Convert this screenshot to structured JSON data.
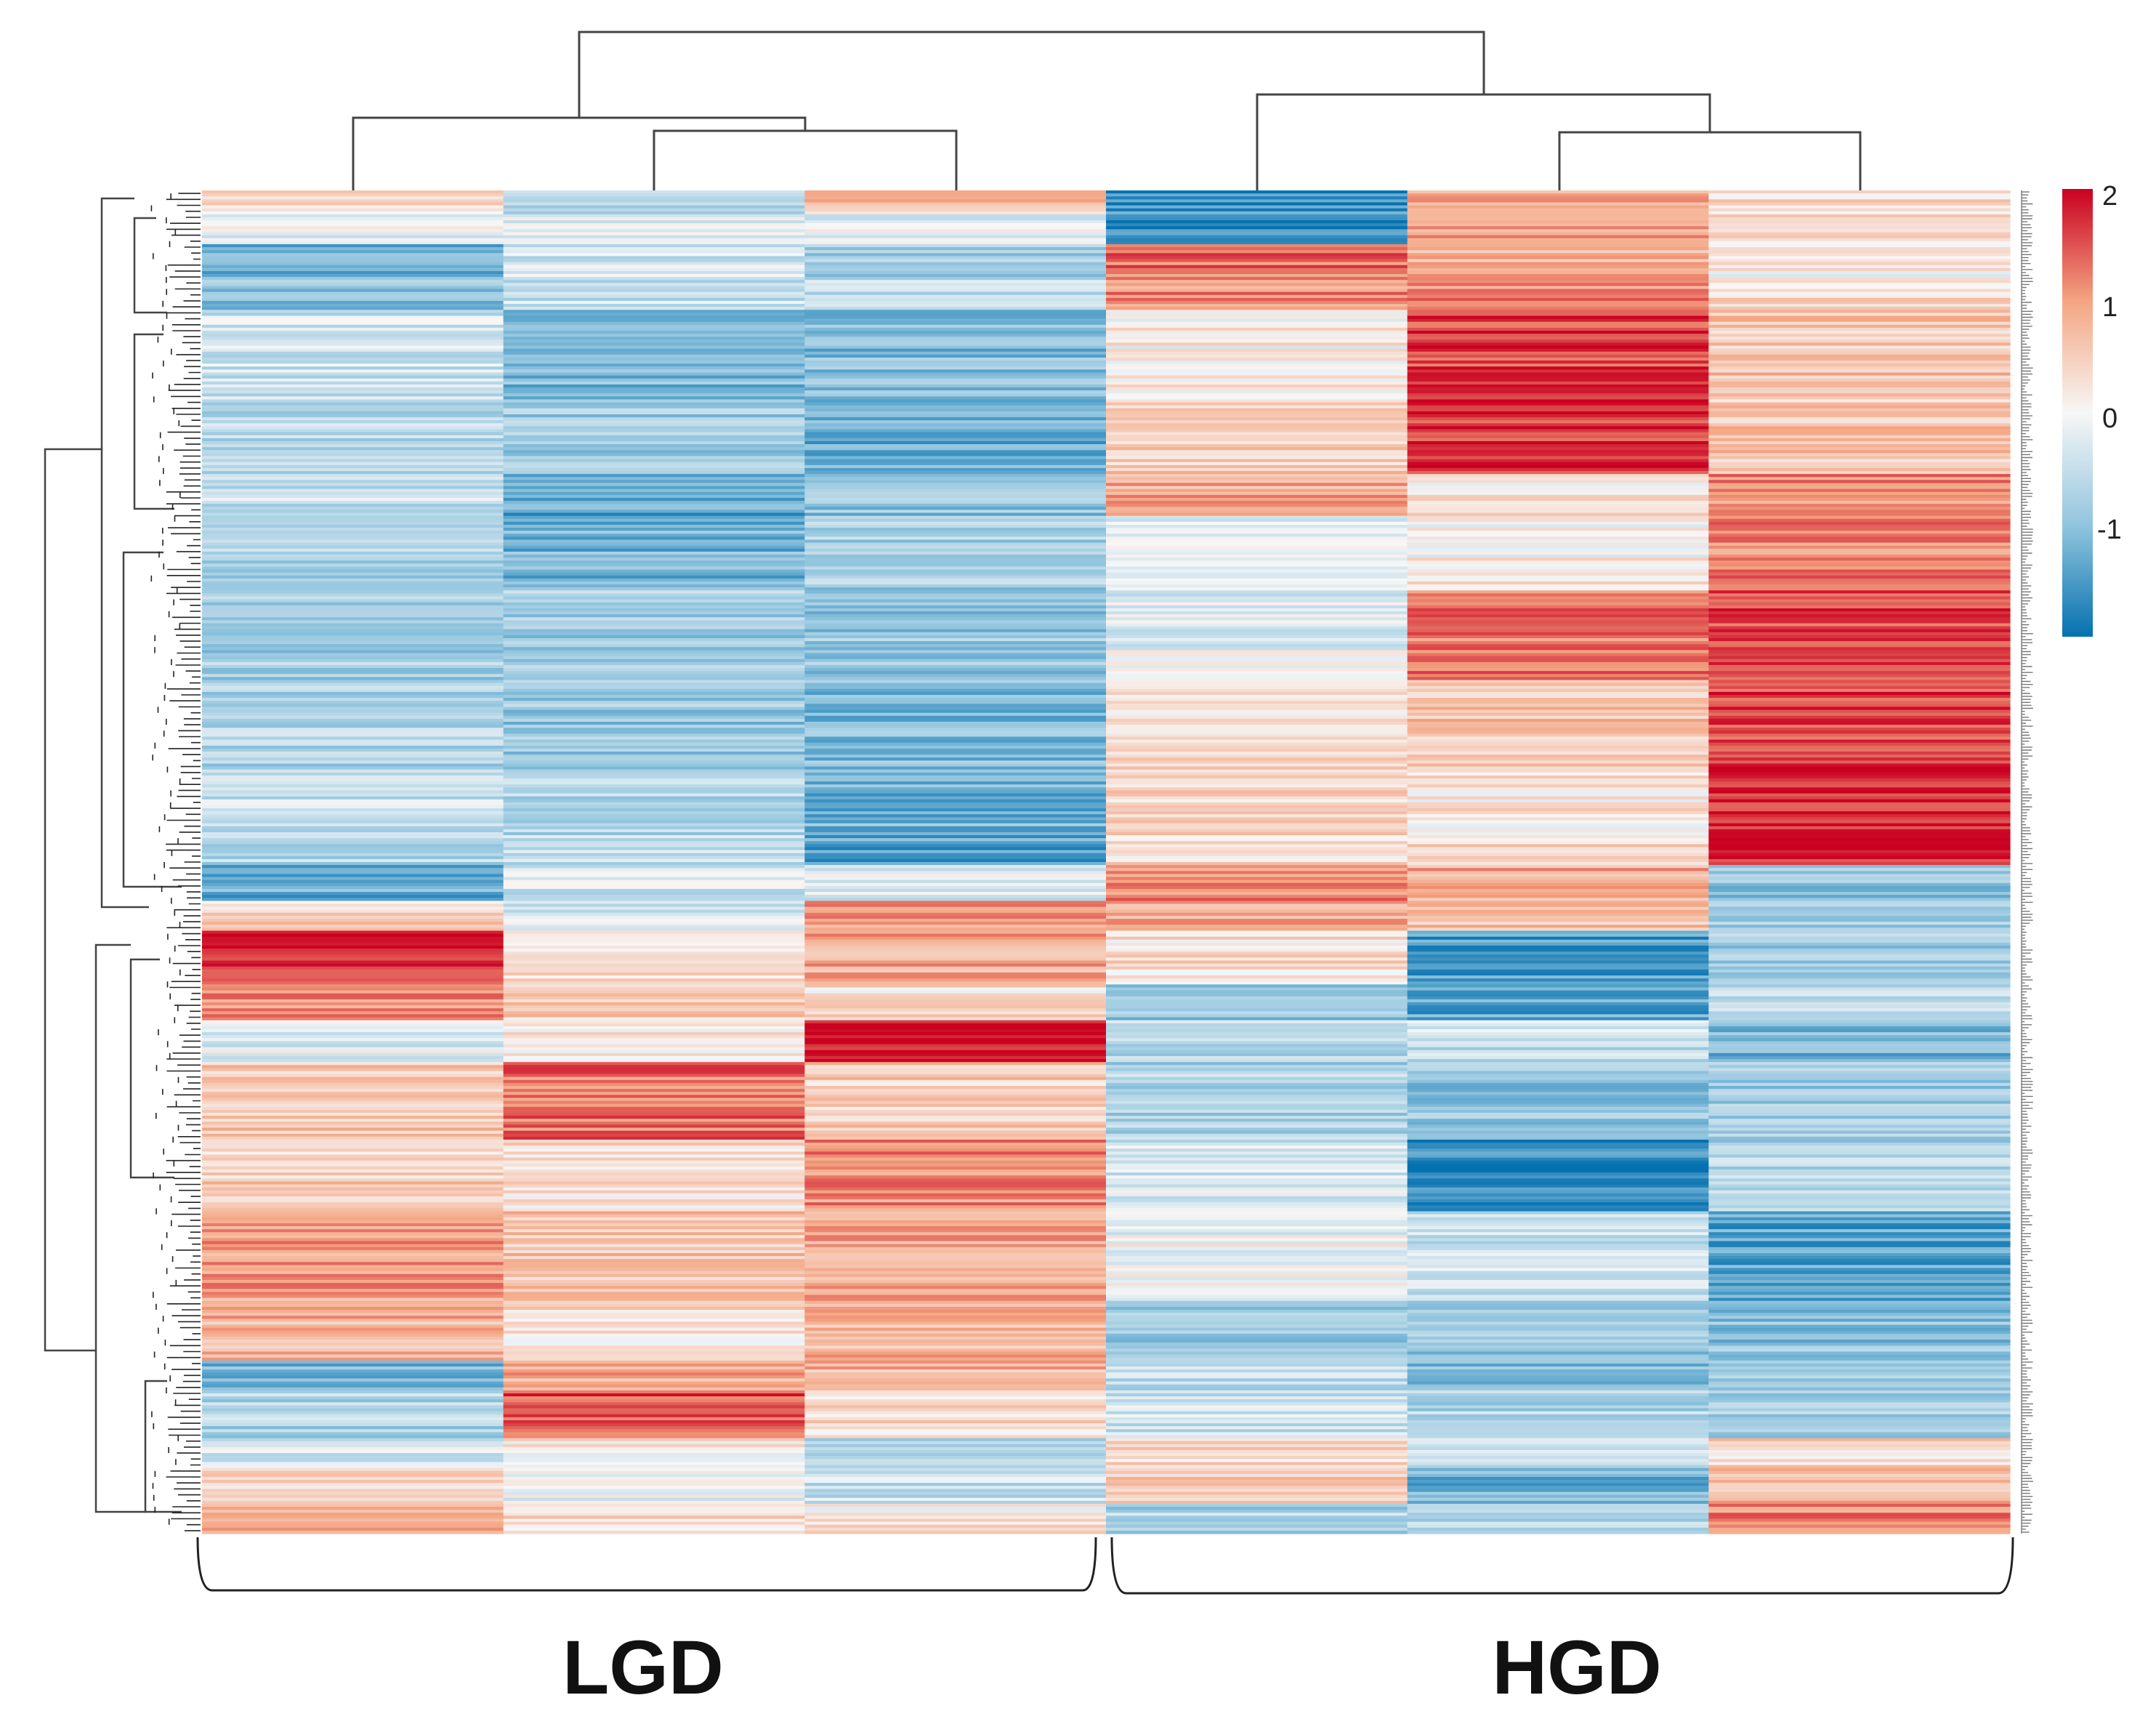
{
  "chart_data": {
    "type": "heatmap",
    "title": "",
    "xlabel": "",
    "ylabel": "",
    "columns": 6,
    "column_order_note": "columns 1-3 LGD samples, 4-6 HGD samples",
    "group_labels": [
      "LGD",
      "HGD"
    ],
    "groups": [
      {
        "name": "LGD",
        "columns": [
          1,
          2,
          3
        ]
      },
      {
        "name": "HGD",
        "columns": [
          4,
          5,
          6
        ]
      }
    ],
    "colorbar": {
      "ticks": [
        "2",
        "1",
        "0",
        "-1"
      ],
      "tick_values": [
        2,
        1,
        0,
        -1
      ],
      "range": [
        -2,
        2
      ],
      "low_color": "#0571b0",
      "mid_color": "#f7f7f7",
      "high_color": "#ca0020"
    },
    "row_blocks": [
      {
        "rows": 8,
        "values": [
          0.4,
          -0.6,
          0.6,
          -1.6,
          0.9,
          0.3
        ]
      },
      {
        "rows": 10,
        "values": [
          -0.2,
          -0.3,
          -0.2,
          -1.7,
          1.0,
          0.3
        ]
      },
      {
        "rows": 12,
        "values": [
          -1.3,
          -0.4,
          -0.9,
          1.3,
          0.9,
          0.1
        ]
      },
      {
        "rows": 10,
        "values": [
          -1.0,
          -0.5,
          -0.6,
          1.1,
          1.1,
          0.3
        ]
      },
      {
        "rows": 30,
        "values": [
          -0.4,
          -1.1,
          -1.1,
          0.1,
          1.6,
          0.6
        ]
      },
      {
        "rows": 25,
        "values": [
          -0.6,
          -0.8,
          -1.3,
          0.5,
          1.7,
          0.6
        ]
      },
      {
        "rows": 14,
        "values": [
          -0.5,
          -1.4,
          -1.0,
          0.9,
          0.2,
          1.1
        ]
      },
      {
        "rows": 25,
        "values": [
          -0.7,
          -1.2,
          -0.8,
          -0.1,
          0.1,
          1.2
        ]
      },
      {
        "rows": 30,
        "values": [
          -0.8,
          -0.8,
          -0.9,
          -0.2,
          1.2,
          1.5
        ]
      },
      {
        "rows": 30,
        "values": [
          -0.7,
          -0.9,
          -1.1,
          0.3,
          0.6,
          1.6
        ]
      },
      {
        "rows": 22,
        "values": [
          -0.5,
          -0.7,
          -1.2,
          0.4,
          0.2,
          1.8
        ]
      },
      {
        "rows": 10,
        "values": [
          -0.6,
          -0.6,
          -1.4,
          0.3,
          0.3,
          1.9
        ]
      },
      {
        "rows": 12,
        "values": [
          -1.3,
          -0.4,
          -0.3,
          1.2,
          0.9,
          -1.0
        ]
      },
      {
        "rows": 10,
        "values": [
          0.5,
          -0.3,
          1.0,
          0.8,
          0.7,
          -0.8
        ]
      },
      {
        "rows": 18,
        "values": [
          1.8,
          0.3,
          0.9,
          0.3,
          -1.5,
          -0.8
        ]
      },
      {
        "rows": 12,
        "values": [
          1.2,
          0.5,
          0.3,
          -0.9,
          -1.4,
          -0.6
        ]
      },
      {
        "rows": 14,
        "values": [
          -0.2,
          0.2,
          1.9,
          -0.6,
          -0.5,
          -1.2
        ]
      },
      {
        "rows": 26,
        "values": [
          0.6,
          1.3,
          0.5,
          -0.7,
          -1.0,
          -0.9
        ]
      },
      {
        "rows": 24,
        "values": [
          0.5,
          0.3,
          1.1,
          -0.3,
          -1.7,
          -0.7
        ]
      },
      {
        "rows": 30,
        "values": [
          1.0,
          0.6,
          0.9,
          -0.1,
          -0.5,
          -1.4
        ]
      },
      {
        "rows": 20,
        "values": [
          0.8,
          0.3,
          0.8,
          -0.9,
          -1.0,
          -1.0
        ]
      },
      {
        "rows": 10,
        "values": [
          -1.1,
          0.9,
          0.8,
          -0.5,
          -1.0,
          -0.7
        ]
      },
      {
        "rows": 16,
        "values": [
          -0.7,
          1.5,
          0.3,
          -0.4,
          -0.7,
          -0.8
        ]
      },
      {
        "rows": 10,
        "values": [
          -0.3,
          0.2,
          -0.8,
          0.3,
          -0.4,
          0.4
        ]
      },
      {
        "rows": 12,
        "values": [
          0.5,
          -0.2,
          -0.5,
          0.6,
          -1.2,
          0.8
        ]
      },
      {
        "rows": 10,
        "values": [
          0.7,
          0.4,
          0.2,
          -0.7,
          -0.7,
          1.1
        ]
      }
    ]
  },
  "group_labels": {
    "left": "LGD",
    "right": "HGD"
  },
  "colorbar_labels": {
    "t2": "2",
    "t1": "1",
    "t0": "0",
    "tm1": "-1"
  }
}
